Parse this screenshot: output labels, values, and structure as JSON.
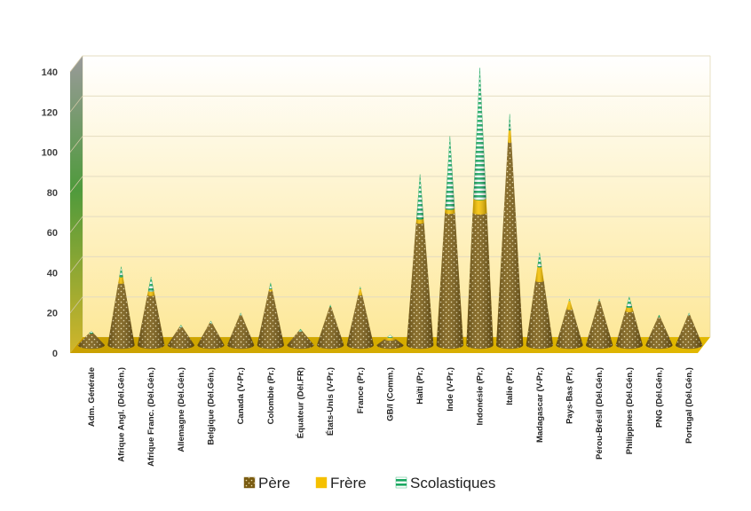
{
  "chart_data": {
    "type": "bar",
    "stacked": true,
    "shape": "cone",
    "categories": [
      "Adm. Générale",
      "Afrique Angl. (Dél.Gén.)",
      "Afrique Franc. (Dél.Gén.)",
      "Allemagne (Dél.Gén.)",
      "Belgique (Dél.Gén.)",
      "Canada (V-Pr.)",
      "Colombie (Pr.)",
      "Équateur (Dél.FR)",
      "États-Unis (V-Pr.)",
      "France (Pr.)",
      "GB/I (Comm.)",
      "Haïti (Pr.)",
      "Inde (V-Pr.)",
      "Indonésie (Pr.)",
      "Italie (Pr.)",
      "Madagascar (V-Pr.)",
      "Pays-Bas (Pr.)",
      "Pérou-Brésil (Dél.Gén.)",
      "Philippines (Dél.Gén.)",
      "PNG (Dél.Gén.)",
      "Portugal (Dél.Gén.)"
    ],
    "series": [
      {
        "name": "Père",
        "color": "#7a5c12",
        "values": [
          6,
          31,
          25,
          9,
          11,
          15,
          27,
          7,
          19,
          25,
          3,
          61,
          66,
          66,
          101,
          32,
          18,
          22,
          17,
          14,
          15
        ]
      },
      {
        "name": "Frère",
        "color": "#f5c000",
        "values": [
          0,
          3,
          2,
          0,
          0,
          0,
          1,
          0,
          0,
          3,
          1,
          2,
          2,
          7,
          6,
          7,
          4,
          0,
          2,
          0,
          0
        ]
      },
      {
        "name": "Scolastiques",
        "color": "#1aa861",
        "values": [
          1,
          5,
          7,
          1,
          1,
          1,
          3,
          1,
          1,
          1,
          1,
          22,
          36,
          65,
          8,
          7,
          1,
          1,
          5,
          1,
          1
        ]
      }
    ],
    "ylim": [
      0,
      140
    ],
    "yticks": [
      0,
      20,
      40,
      60,
      80,
      100,
      120,
      140
    ],
    "grid": true,
    "legend_position": "bottom",
    "xlabel": "",
    "ylabel": ""
  }
}
